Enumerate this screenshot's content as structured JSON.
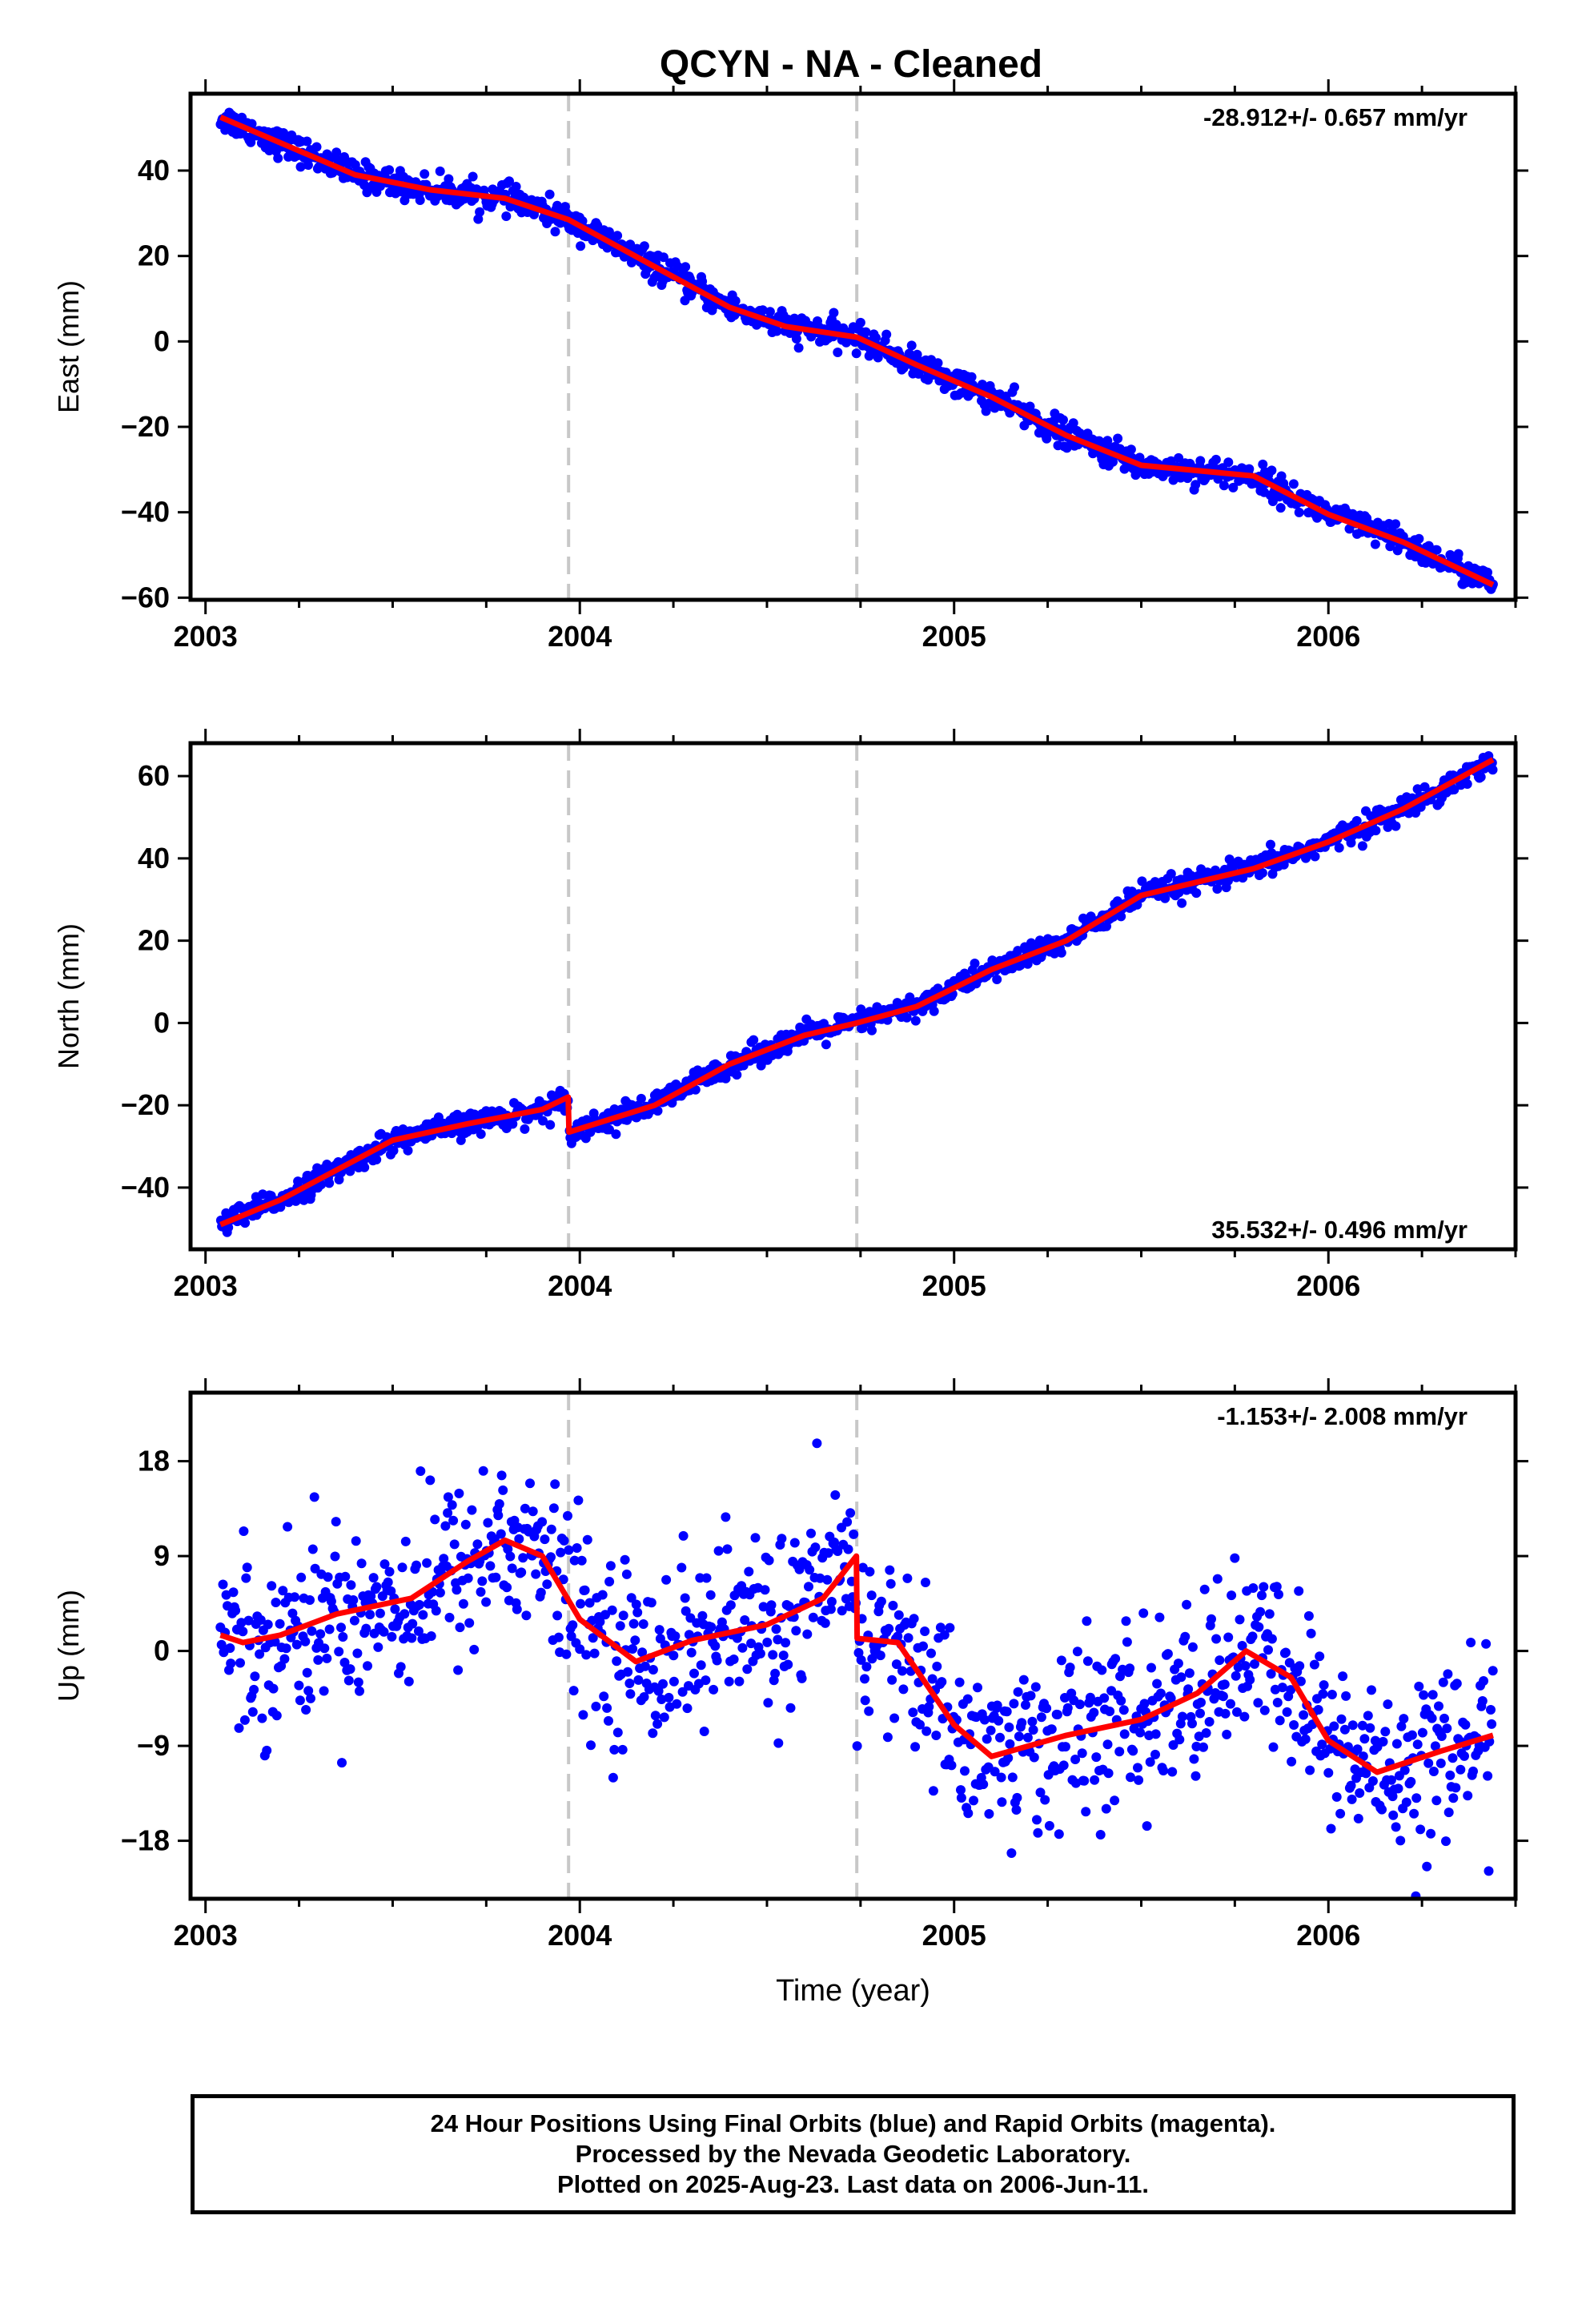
{
  "title": "QCYN  - NA - Cleaned",
  "footer": {
    "line1": "24 Hour Positions Using Final Orbits (blue) and Rapid Orbits (magenta).",
    "line2": "Processed by the Nevada Geodetic Laboratory.",
    "line3": "Plotted on 2025-Aug-23. Last data on 2006-Jun-11."
  },
  "colors": {
    "points": "#0000ff",
    "fit": "#ff0000",
    "marker_lines": "#c8c8c8",
    "frame": "#000000"
  },
  "chart_data": [
    {
      "type": "scatter",
      "component": "east",
      "ylabel": "East (mm)",
      "rate_label": "-28.912+/- 0.657 mm/yr",
      "rate_position": "top-right",
      "xlim": [
        2002.96,
        2006.5
      ],
      "ylim": [
        -60.5,
        58
      ],
      "xticks": [
        2003,
        2004,
        2005,
        2006
      ],
      "xtick_labels": [
        "2003",
        "2004",
        "2005",
        "2006"
      ],
      "yticks": [
        -60,
        -40,
        -20,
        0,
        20,
        40
      ],
      "ytick_labels": [
        "−60",
        "−40",
        "−20",
        "0",
        "20",
        "40"
      ],
      "markers_x": [
        2003.97,
        2004.74
      ],
      "fit": {
        "x": [
          2003.04,
          2003.2,
          2003.4,
          2003.6,
          2003.8,
          2003.97,
          2004.2,
          2004.4,
          2004.55,
          2004.74,
          2004.9,
          2005.1,
          2005.3,
          2005.5,
          2005.8,
          2006.0,
          2006.2,
          2006.44
        ],
        "y": [
          52.5,
          46.5,
          39.0,
          35.5,
          33.5,
          28.5,
          17.5,
          8.0,
          3.5,
          1.0,
          -5.5,
          -13.0,
          -22.0,
          -29.0,
          -31.5,
          -40.5,
          -47.0,
          -57.0
        ]
      },
      "scatter": {
        "start": 2003.04,
        "end": 2006.44,
        "count": 1150,
        "noise": 1.6
      }
    },
    {
      "type": "scatter",
      "component": "north",
      "ylabel": "North (mm)",
      "rate_label": "35.532+/- 0.496 mm/yr",
      "rate_position": "bottom-right",
      "xlim": [
        2002.96,
        2006.5
      ],
      "ylim": [
        -55,
        68
      ],
      "xticks": [
        2003,
        2004,
        2005,
        2006
      ],
      "xtick_labels": [
        "2003",
        "2004",
        "2005",
        "2006"
      ],
      "yticks": [
        -40,
        -20,
        0,
        20,
        40,
        60
      ],
      "ytick_labels": [
        "−40",
        "−20",
        "0",
        "20",
        "40",
        "60"
      ],
      "markers_x": [
        2003.97,
        2004.74
      ],
      "fit": {
        "x": [
          2003.04,
          2003.2,
          2003.5,
          2003.7,
          2003.9,
          2003.969,
          2003.971,
          2004.2,
          2004.4,
          2004.6,
          2004.74,
          2004.9,
          2005.1,
          2005.3,
          2005.5,
          2005.8,
          2006.0,
          2006.2,
          2006.44
        ],
        "y": [
          -49.0,
          -43.0,
          -28.5,
          -24.5,
          -21.0,
          -18.0,
          -26.5,
          -20.0,
          -10.0,
          -3.0,
          0.0,
          4.0,
          13.0,
          20.0,
          31.0,
          37.5,
          44.0,
          52.0,
          64.0
        ]
      },
      "scatter": {
        "start": 2003.04,
        "end": 2006.44,
        "count": 1150,
        "noise": 1.4
      }
    },
    {
      "type": "scatter",
      "component": "up",
      "ylabel": "Up (mm)",
      "xlabel": "Time (year)",
      "rate_label": "-1.153+/- 2.008 mm/yr",
      "rate_position": "top-right",
      "xlim": [
        2002.96,
        2006.5
      ],
      "ylim": [
        -23.5,
        24.5
      ],
      "xticks": [
        2003,
        2004,
        2005,
        2006
      ],
      "xtick_labels": [
        "2003",
        "2004",
        "2005",
        "2006"
      ],
      "yticks": [
        -18,
        -9,
        0,
        9,
        18
      ],
      "ytick_labels": [
        "−18",
        "−9",
        "0",
        "9",
        "18"
      ],
      "markers_x": [
        2003.97,
        2004.74
      ],
      "fit": {
        "x": [
          2003.04,
          2003.1,
          2003.2,
          2003.35,
          2003.55,
          2003.7,
          2003.8,
          2003.9,
          2004.0,
          2004.15,
          2004.3,
          2004.5,
          2004.65,
          2004.739,
          2004.741,
          2004.85,
          2005.0,
          2005.1,
          2005.3,
          2005.5,
          2005.65,
          2005.78,
          2005.9,
          2006.0,
          2006.13,
          2006.3,
          2006.44
        ],
        "y": [
          1.5,
          0.8,
          1.5,
          3.5,
          5.0,
          8.5,
          10.5,
          9.0,
          3.0,
          -1.0,
          1.0,
          2.5,
          5.0,
          9.0,
          1.2,
          0.8,
          -7.0,
          -10.0,
          -8.0,
          -6.5,
          -4.0,
          0.0,
          -2.5,
          -8.5,
          -11.5,
          -9.5,
          -8.0
        ]
      },
      "scatter": {
        "start": 2003.04,
        "end": 2006.44,
        "count": 1100,
        "noise": 4.2
      }
    }
  ]
}
